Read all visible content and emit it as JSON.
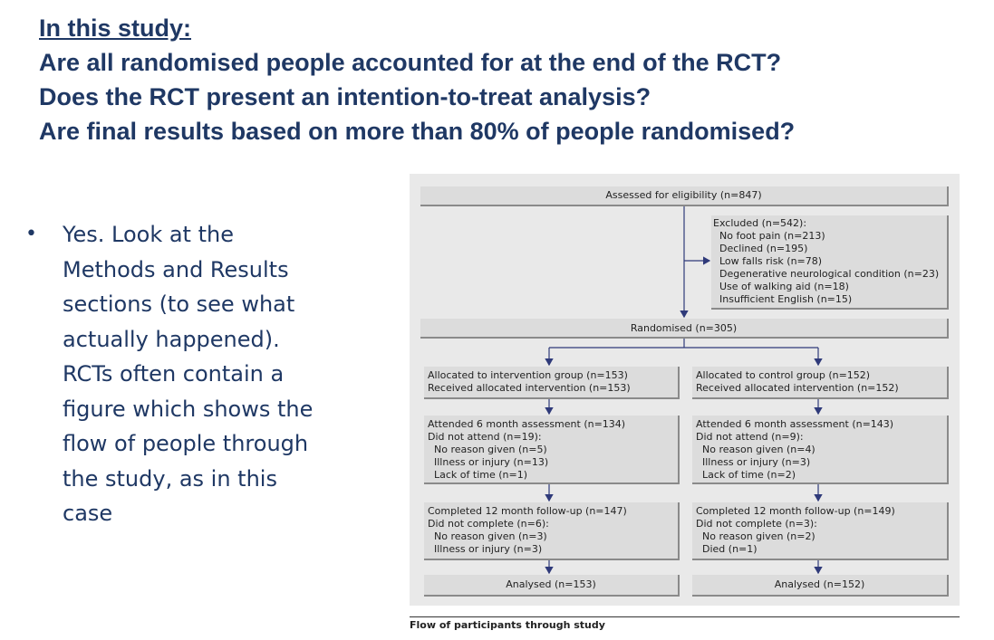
{
  "heading": {
    "title": "In this study:",
    "questions": [
      "Are all randomised people accounted for at the end of the RCT?",
      "Does the RCT present an intention-to-treat analysis?",
      "Are final results based on more than 80% of people randomised?"
    ]
  },
  "bullet": {
    "symbol": "•",
    "text": "Yes. Look at the Methods and Results sections (to see what actually happened). RCTs often contain a figure which shows the flow of people through the study, as in this case"
  },
  "flowchart": {
    "eligibility": "Assessed for eligibility (n=847)",
    "excluded": {
      "title": "Excluded (n=542):",
      "items": [
        "No foot pain (n=213)",
        "Declined (n=195)",
        "Low falls risk (n=78)",
        "Degenerative neurological condition (n=23)",
        "Use of walking aid (n=18)",
        "Insufficient English (n=15)"
      ]
    },
    "randomised": "Randomised (n=305)",
    "intervention": {
      "allocated": [
        "Allocated to intervention group (n=153)",
        "Received allocated intervention (n=153)"
      ],
      "six_month": {
        "lines": [
          "Attended 6 month assessment (n=134)",
          "Did not attend (n=19):"
        ],
        "items": [
          "No reason given (n=5)",
          "Illness or injury (n=13)",
          "Lack of time (n=1)"
        ]
      },
      "twelve_month": {
        "lines": [
          "Completed 12 month follow-up (n=147)",
          "Did not complete (n=6):"
        ],
        "items": [
          "No reason given (n=3)",
          "Illness or injury (n=3)"
        ]
      },
      "analysed": "Analysed (n=153)"
    },
    "control": {
      "allocated": [
        "Allocated to control group (n=152)",
        "Received allocated intervention (n=152)"
      ],
      "six_month": {
        "lines": [
          "Attended 6 month assessment (n=143)",
          "Did not attend (n=9):"
        ],
        "items": [
          "No reason given (n=4)",
          "Illness or injury (n=3)",
          "Lack of time (n=2)"
        ]
      },
      "twelve_month": {
        "lines": [
          "Completed 12 month follow-up (n=149)",
          "Did not complete (n=3):"
        ],
        "items": [
          "No reason given (n=2)",
          "Died (n=1)"
        ]
      },
      "analysed": "Analysed (n=152)"
    },
    "caption": "Flow of participants through study",
    "colors": {
      "box": "#dcdcdc",
      "background": "#e9e9e9",
      "arrow": "#2f3a7a"
    }
  }
}
